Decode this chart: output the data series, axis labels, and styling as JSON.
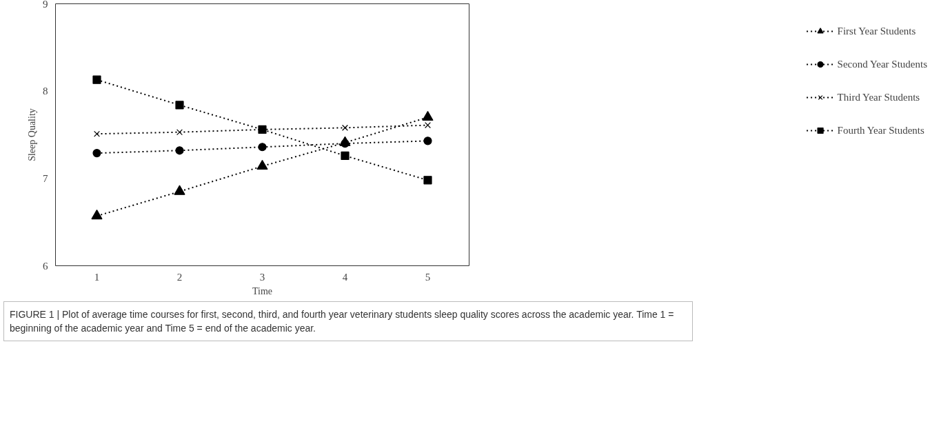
{
  "chart_data": {
    "type": "line",
    "xlabel": "Time",
    "ylabel": "Sleep Quality",
    "x": [
      1,
      2,
      3,
      4,
      5
    ],
    "xlim": [
      0.5,
      5.5
    ],
    "xticks": [
      1,
      2,
      3,
      4,
      5
    ],
    "ylim": [
      6,
      9
    ],
    "yticks": [
      6,
      7,
      8,
      9
    ],
    "grid": false,
    "legend": "right",
    "line_style": "dotted",
    "series": [
      {
        "name": "First Year Students",
        "color": "#000000",
        "marker": "triangle",
        "values": [
          6.57,
          6.85,
          7.14,
          7.41,
          7.7
        ]
      },
      {
        "name": "Second Year Students",
        "color": "#000000",
        "marker": "circle",
        "values": [
          7.29,
          7.32,
          7.36,
          7.4,
          7.43
        ]
      },
      {
        "name": "Third Year Students",
        "color": "#000000",
        "marker": "cross",
        "values": [
          7.51,
          7.53,
          7.56,
          7.58,
          7.61
        ]
      },
      {
        "name": "Fourth Year Students",
        "color": "#000000",
        "marker": "square",
        "values": [
          8.13,
          7.84,
          7.56,
          7.26,
          6.98
        ]
      }
    ],
    "annotations": [
      "FIGURE 1 | Plot of average time courses for first, second, third, and fourth year veterinary students sleep quality scores across the academic year. Time 1 = beginning of the academic year and Time 5 = end of the academic year."
    ]
  }
}
